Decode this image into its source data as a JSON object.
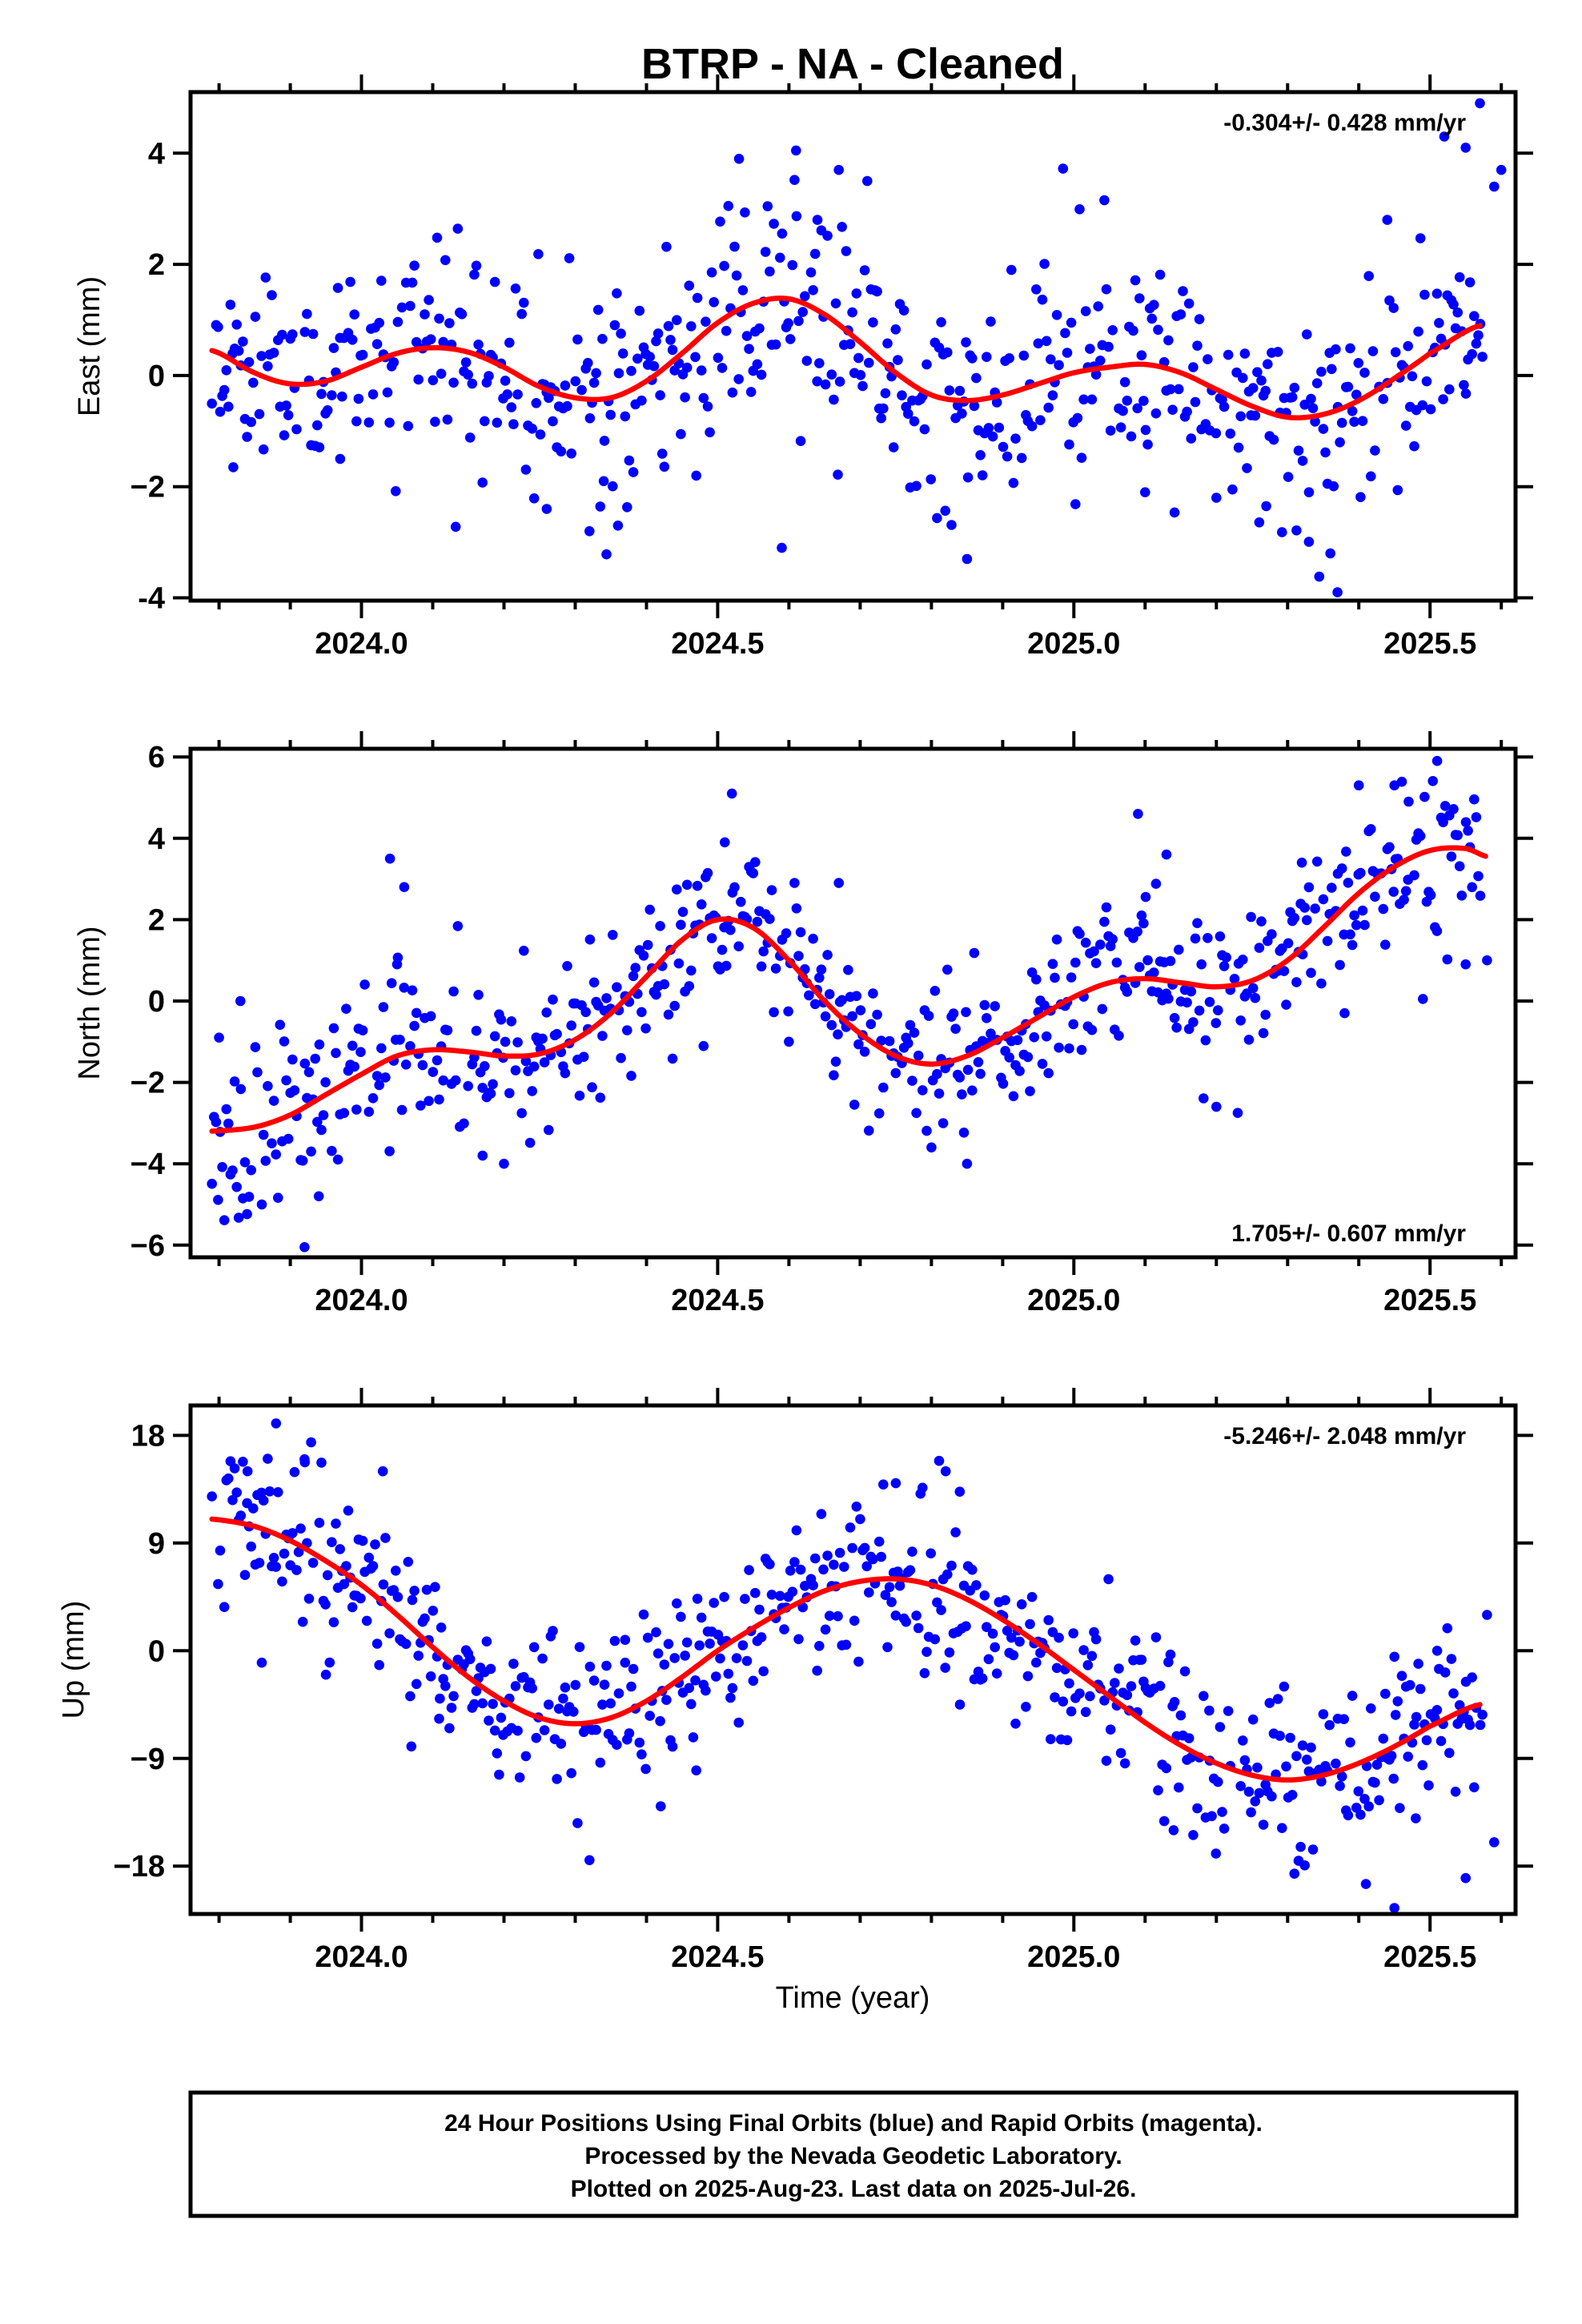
{
  "title": "BTRP  - NA - Cleaned",
  "xlabel": "Time (year)",
  "x_tick_labels": [
    "2024.0",
    "2024.5",
    "2025.0",
    "2025.5"
  ],
  "caption": [
    "24 Hour Positions Using Final Orbits (blue) and Rapid Orbits (magenta).",
    "Processed by the Nevada Geodetic Laboratory.",
    "Plotted on 2025-Aug-23. Last data on 2025-Jul-26."
  ],
  "colors": {
    "points": "#0000ff",
    "model": "#ff0000",
    "axes": "#000000"
  },
  "chart_data": [
    {
      "type": "scatter",
      "name": "east",
      "ylabel": "East (mm)",
      "rate_label": "-0.304+/- 0.428 mm/yr",
      "rate_position": "top-right",
      "xlim": [
        2023.76,
        2025.62
      ],
      "ylim": [
        -4.05,
        5.1
      ],
      "x_ticks": [
        2024.0,
        2024.5,
        2025.0,
        2025.5
      ],
      "y_ticks": [
        4,
        2,
        0,
        -2,
        -4
      ],
      "y_tick_labels": [
        "4",
        "2",
        "0",
        "−2",
        "-4"
      ],
      "model": {
        "x": [
          2023.79,
          2023.85,
          2023.9,
          2023.95,
          2024.0,
          2024.05,
          2024.1,
          2024.15,
          2024.2,
          2024.25,
          2024.3,
          2024.35,
          2024.4,
          2024.45,
          2024.5,
          2024.55,
          2024.6,
          2024.65,
          2024.7,
          2024.75,
          2024.8,
          2024.85,
          2024.9,
          2024.95,
          2025.0,
          2025.05,
          2025.1,
          2025.15,
          2025.2,
          2025.25,
          2025.3,
          2025.35,
          2025.4,
          2025.45,
          2025.5,
          2025.57
        ],
        "y": [
          0.45,
          0.05,
          -0.15,
          -0.1,
          0.15,
          0.4,
          0.5,
          0.42,
          0.15,
          -0.2,
          -0.4,
          -0.4,
          -0.1,
          0.4,
          0.95,
          1.3,
          1.38,
          1.1,
          0.6,
          0.05,
          -0.35,
          -0.45,
          -0.35,
          -0.15,
          0.05,
          0.15,
          0.2,
          0.05,
          -0.25,
          -0.55,
          -0.75,
          -0.7,
          -0.45,
          -0.05,
          0.4,
          0.9
        ]
      },
      "points": {
        "band": 1.0,
        "outliers": [
          [
            2023.82,
            -1.65
          ],
          [
            2023.97,
            -1.5
          ],
          [
            2024.26,
            -2.4
          ],
          [
            2024.32,
            -2.8
          ],
          [
            2024.34,
            -1.9
          ],
          [
            2024.36,
            -2.7
          ],
          [
            2024.47,
            -1.8
          ],
          [
            2024.59,
            -3.1
          ],
          [
            2024.64,
            2.8
          ],
          [
            2024.67,
            3.7
          ],
          [
            2024.71,
            3.5
          ],
          [
            2024.85,
            -3.3
          ],
          [
            2024.53,
            3.9
          ],
          [
            2024.61,
            4.05
          ],
          [
            2025.1,
            -2.1
          ],
          [
            2025.2,
            -2.2
          ],
          [
            2025.27,
            -2.35
          ],
          [
            2025.33,
            -2.1
          ],
          [
            2025.36,
            -3.2
          ],
          [
            2025.37,
            -3.9
          ],
          [
            2025.44,
            2.8
          ],
          [
            2025.52,
            4.3
          ],
          [
            2025.55,
            4.1
          ],
          [
            2025.57,
            4.9
          ],
          [
            2025.59,
            3.4
          ],
          [
            2025.6,
            3.7
          ]
        ]
      }
    },
    {
      "type": "scatter",
      "name": "north",
      "ylabel": "North (mm)",
      "rate_label": "1.705+/- 0.607 mm/yr",
      "rate_position": "bottom-right",
      "xlim": [
        2023.76,
        2025.62
      ],
      "ylim": [
        -6.3,
        6.2
      ],
      "x_ticks": [
        2024.0,
        2024.5,
        2025.0,
        2025.5
      ],
      "y_ticks": [
        6,
        4,
        2,
        0,
        -2,
        -4,
        -6
      ],
      "y_tick_labels": [
        "6",
        "4",
        "2",
        "0",
        "−2",
        "−4",
        "−6"
      ],
      "model": {
        "x": [
          2023.79,
          2023.85,
          2023.9,
          2023.95,
          2024.0,
          2024.05,
          2024.1,
          2024.15,
          2024.2,
          2024.25,
          2024.3,
          2024.35,
          2024.4,
          2024.45,
          2024.5,
          2024.55,
          2024.6,
          2024.65,
          2024.7,
          2024.75,
          2024.8,
          2024.85,
          2024.9,
          2024.95,
          2025.0,
          2025.05,
          2025.1,
          2025.15,
          2025.2,
          2025.25,
          2025.3,
          2025.35,
          2025.4,
          2025.45,
          2025.5,
          2025.55,
          2025.58
        ],
        "y": [
          -3.2,
          -3.1,
          -2.8,
          -2.3,
          -1.8,
          -1.35,
          -1.2,
          -1.25,
          -1.35,
          -1.3,
          -0.95,
          -0.3,
          0.6,
          1.5,
          2.0,
          1.8,
          1.0,
          0.0,
          -0.8,
          -1.35,
          -1.55,
          -1.35,
          -0.9,
          -0.4,
          0.1,
          0.45,
          0.55,
          0.45,
          0.35,
          0.5,
          1.0,
          1.8,
          2.65,
          3.3,
          3.7,
          3.75,
          3.55
        ]
      },
      "points": {
        "band": 1.0,
        "outliers": [
          [
            2023.8,
            -0.9
          ],
          [
            2023.83,
            0.0
          ],
          [
            2023.86,
            -5.0
          ],
          [
            2023.92,
            -6.05
          ],
          [
            2023.94,
            -4.8
          ],
          [
            2024.04,
            3.5
          ],
          [
            2024.05,
            0.9
          ],
          [
            2024.06,
            2.8
          ],
          [
            2024.17,
            -3.8
          ],
          [
            2024.2,
            -4.0
          ],
          [
            2024.52,
            5.1
          ],
          [
            2024.51,
            3.9
          ],
          [
            2024.6,
            -1.0
          ],
          [
            2024.67,
            2.9
          ],
          [
            2024.8,
            -3.6
          ],
          [
            2024.85,
            -4.0
          ],
          [
            2025.09,
            4.6
          ],
          [
            2025.13,
            3.6
          ],
          [
            2025.2,
            -2.6
          ],
          [
            2025.23,
            -2.75
          ],
          [
            2025.32,
            3.4
          ],
          [
            2025.38,
            -0.3
          ],
          [
            2025.4,
            5.3
          ],
          [
            2025.45,
            5.3
          ],
          [
            2025.47,
            4.9
          ],
          [
            2025.49,
            0.05
          ],
          [
            2025.51,
            5.9
          ],
          [
            2025.55,
            0.9
          ],
          [
            2025.58,
            1.0
          ]
        ]
      }
    },
    {
      "type": "scatter",
      "name": "up",
      "ylabel": "Up (mm)",
      "rate_label": "-5.246+/- 2.048 mm/yr",
      "rate_position": "top-right",
      "xlim": [
        2023.76,
        2025.62
      ],
      "ylim": [
        -22,
        20.5
      ],
      "x_ticks": [
        2024.0,
        2024.5,
        2025.0,
        2025.5
      ],
      "y_ticks": [
        18,
        9,
        0,
        -9,
        -18
      ],
      "y_tick_labels": [
        "18",
        "9",
        "0",
        "−9",
        "−18"
      ],
      "model": {
        "x": [
          2023.79,
          2023.85,
          2023.9,
          2023.95,
          2024.0,
          2024.05,
          2024.1,
          2024.15,
          2024.2,
          2024.25,
          2024.3,
          2024.35,
          2024.4,
          2024.45,
          2024.5,
          2024.55,
          2024.6,
          2024.65,
          2024.7,
          2024.75,
          2024.8,
          2024.85,
          2024.9,
          2024.95,
          2025.0,
          2025.05,
          2025.1,
          2025.15,
          2025.2,
          2025.25,
          2025.3,
          2025.35,
          2025.4,
          2025.45,
          2025.5,
          2025.57
        ],
        "y": [
          11.0,
          10.4,
          9.2,
          7.5,
          5.5,
          3.0,
          0.3,
          -2.2,
          -4.2,
          -5.6,
          -6.1,
          -5.6,
          -4.2,
          -2.2,
          0.0,
          1.9,
          3.6,
          5.0,
          5.8,
          6.0,
          5.5,
          4.3,
          2.6,
          0.6,
          -1.6,
          -3.8,
          -6.0,
          -7.9,
          -9.4,
          -10.4,
          -10.8,
          -10.4,
          -9.4,
          -8.0,
          -6.3,
          -4.5
        ]
      },
      "points": {
        "band": 3.5,
        "outliers": [
          [
            2023.84,
            15.0
          ],
          [
            2023.86,
            -1.0
          ],
          [
            2023.88,
            19.0
          ],
          [
            2023.92,
            16.0
          ],
          [
            2023.95,
            -2.0
          ],
          [
            2024.03,
            15.0
          ],
          [
            2024.07,
            -8.0
          ],
          [
            2024.11,
            -4.0
          ],
          [
            2024.32,
            -17.5
          ],
          [
            2024.37,
            -1.0
          ],
          [
            2024.42,
            -13.0
          ],
          [
            2024.47,
            -10.0
          ],
          [
            2024.7,
            11.0
          ],
          [
            2024.75,
            14.0
          ],
          [
            2024.82,
            15.0
          ],
          [
            2024.84,
            -4.5
          ],
          [
            2025.14,
            -15.0
          ],
          [
            2025.19,
            -5.0
          ],
          [
            2025.41,
            -19.5
          ],
          [
            2025.45,
            -21.5
          ],
          [
            2025.48,
            -14.0
          ],
          [
            2025.55,
            -19.0
          ],
          [
            2025.58,
            3.0
          ],
          [
            2025.59,
            -16.0
          ],
          [
            2025.45,
            -0.5
          ],
          [
            2025.51,
            0.0
          ]
        ]
      }
    }
  ]
}
